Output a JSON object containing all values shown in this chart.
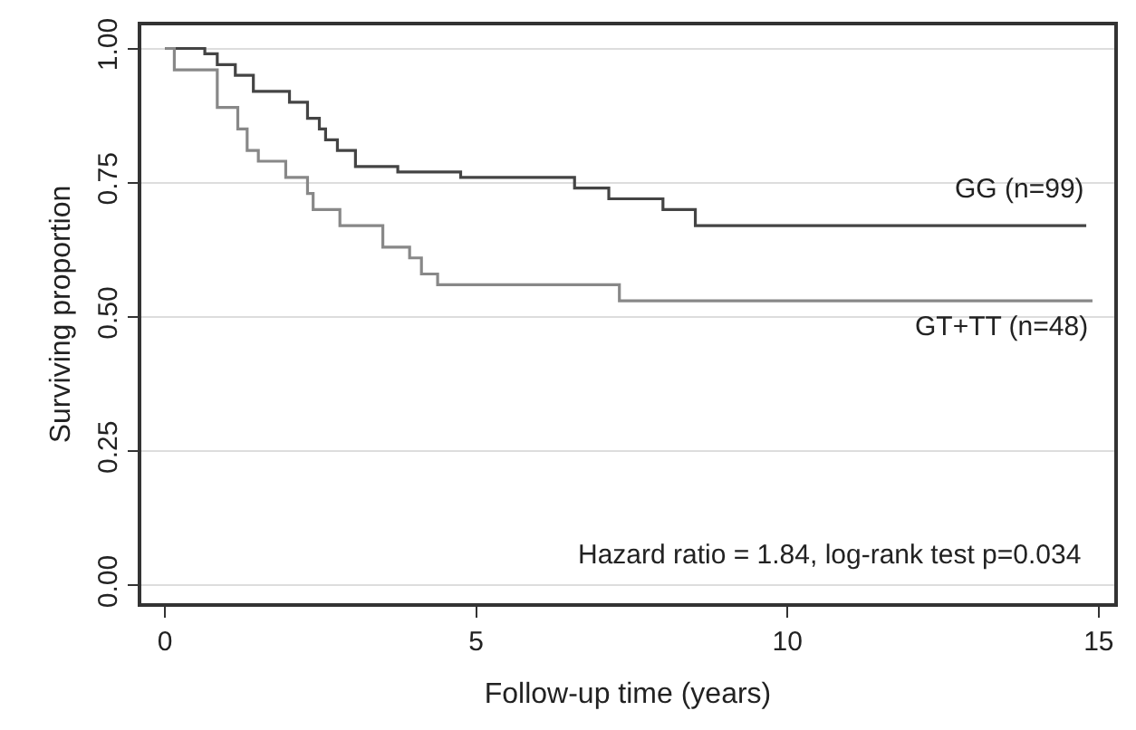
{
  "chart_data": {
    "type": "step",
    "xlabel": "Follow-up time (years)",
    "ylabel": "Surviving proportion",
    "xlim": [
      -0.38,
      15.25
    ],
    "ylim": [
      -0.033,
      1.043
    ],
    "xticks": [
      0,
      5,
      10,
      15
    ],
    "yticks": [
      {
        "value": 0,
        "label": "0.00"
      },
      {
        "value": 0.25,
        "label": "0.25"
      },
      {
        "value": 0.5,
        "label": "0.50"
      },
      {
        "value": 0.75,
        "label": "0.75"
      },
      {
        "value": 1,
        "label": "1.00"
      }
    ],
    "grid": "y",
    "legend": false,
    "line_style": "solid",
    "marker": "none",
    "series": [
      {
        "name": "GG (n=99)",
        "color": "#444444",
        "x": [
          0,
          0.64,
          0.84,
          1.13,
          1.42,
          2.0,
          2.29,
          2.48,
          2.58,
          2.77,
          3.06,
          3.74,
          4.75,
          6.58,
          7.13,
          8.0,
          8.52,
          14.8
        ],
        "values": [
          1.0,
          0.99,
          0.97,
          0.95,
          0.92,
          0.9,
          0.87,
          0.85,
          0.83,
          0.81,
          0.78,
          0.77,
          0.76,
          0.74,
          0.72,
          0.7,
          0.67,
          0.67
        ]
      },
      {
        "name": "GT+TT (n=48)",
        "color": "#888888",
        "x": [
          0,
          0.15,
          0.84,
          1.17,
          1.32,
          1.5,
          1.94,
          2.29,
          2.38,
          2.81,
          3.5,
          3.93,
          4.12,
          4.38,
          7.3,
          14.9
        ],
        "values": [
          1.0,
          0.96,
          0.89,
          0.85,
          0.81,
          0.79,
          0.76,
          0.73,
          0.7,
          0.67,
          0.63,
          0.61,
          0.58,
          0.56,
          0.53,
          0.53
        ]
      }
    ],
    "annotations": [
      "Hazard ratio = 1.84, log-rank test p=0.034"
    ]
  }
}
